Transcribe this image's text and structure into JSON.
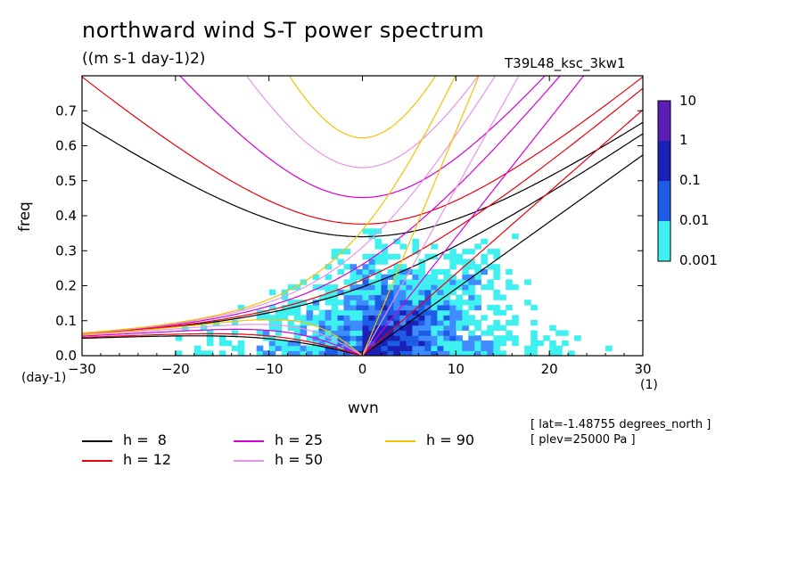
{
  "title": "northward wind S-T power spectrum",
  "subtitle": "((m s-1 day-1)2)",
  "run_name": "T39L48_ksc_3kw1",
  "info": [
    "[ lat=-1.48755 degrees_north ]",
    "[ plev=25000 Pa ]"
  ],
  "chart_data": {
    "type": "heatmap",
    "title": "northward wind S-T power spectrum",
    "subtitle": "((m s-1 day-1)2)",
    "xlabel": "wvn",
    "ylabel": "freq",
    "x_unit": "(1)",
    "y_unit": "(day-1)",
    "xlim": [
      -30,
      30
    ],
    "ylim": [
      0,
      0.8
    ],
    "x_ticks": [
      "-30",
      "-20",
      "-10",
      "0",
      "10",
      "20",
      "30"
    ],
    "y_ticks": [
      "0.0",
      "0.1",
      "0.2",
      "0.3",
      "0.4",
      "0.5",
      "0.6",
      "0.7"
    ],
    "colorbar": {
      "levels": [
        "10",
        "1",
        "0.1",
        "0.01",
        "0.001"
      ],
      "colors": [
        "#5b1fb8",
        "#1b21b4",
        "#1d5de6",
        "#3f8cff",
        "#3ff0f0"
      ]
    },
    "dispersion_curves": [
      {
        "name": "h =  8",
        "color": "#000000"
      },
      {
        "name": "h = 12",
        "color": "#e8000b"
      },
      {
        "name": "h = 25",
        "color": "#d800d8"
      },
      {
        "name": "h = 50",
        "color": "#e894e8"
      },
      {
        "name": "h = 90",
        "color": "#f2c200"
      }
    ]
  }
}
